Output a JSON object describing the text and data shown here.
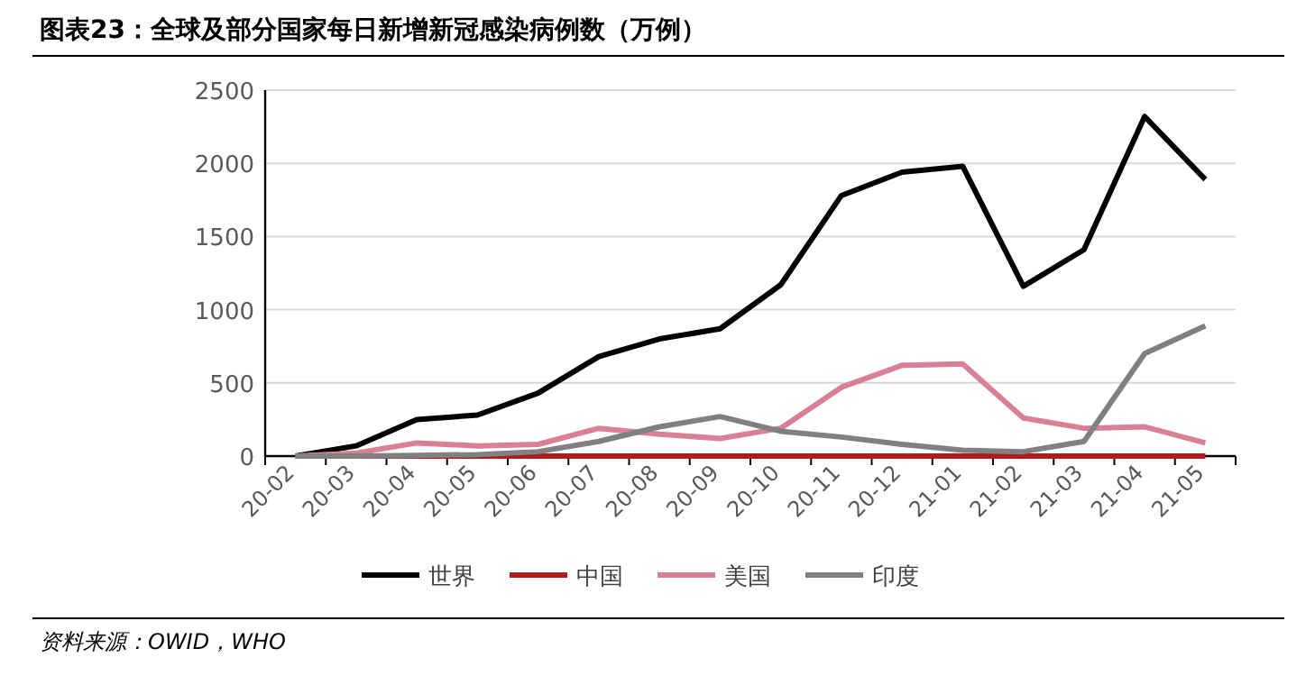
{
  "chart_data": {
    "type": "line",
    "title": "图表23：全球及部分国家每日新增新冠感染病例数（万例）",
    "categories": [
      "20-02",
      "20-03",
      "20-04",
      "20-05",
      "20-06",
      "20-07",
      "20-08",
      "20-09",
      "20-10",
      "20-11",
      "20-12",
      "21-01",
      "21-02",
      "21-03",
      "21-04",
      "21-05"
    ],
    "series": [
      {
        "name": "世界",
        "color": "#000000",
        "values": [
          0,
          70,
          250,
          280,
          430,
          680,
          800,
          870,
          1170,
          1780,
          1940,
          1980,
          1160,
          1410,
          2320,
          1890
        ]
      },
      {
        "name": "中国",
        "color": "#b01c1c",
        "values": [
          0,
          0,
          0,
          0,
          0,
          0,
          0,
          0,
          0,
          0,
          0,
          0,
          0,
          0,
          0,
          0
        ]
      },
      {
        "name": "美国",
        "color": "#d98095",
        "values": [
          0,
          20,
          90,
          70,
          80,
          190,
          150,
          120,
          190,
          470,
          620,
          630,
          260,
          190,
          200,
          90
        ]
      },
      {
        "name": "印度",
        "color": "#808080",
        "values": [
          0,
          0,
          5,
          10,
          30,
          100,
          200,
          270,
          170,
          130,
          80,
          40,
          30,
          100,
          700,
          890
        ]
      }
    ],
    "ylim": [
      0,
      2500
    ],
    "yticks": [
      0,
      500,
      1000,
      1500,
      2000,
      2500
    ],
    "grid": "y",
    "legend": "bottom",
    "marker": "none",
    "line_style": "solid",
    "annotations": [
      "资料来源：OWID，WHO"
    ]
  }
}
